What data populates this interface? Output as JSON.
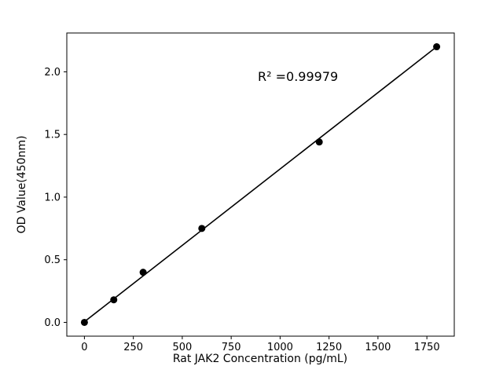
{
  "figure": {
    "background": "#ffffff"
  },
  "chart_data": {
    "type": "scatter",
    "title": "",
    "xlabel": "Rat JAK2 Concentration (pg/mL)",
    "ylabel": "OD Value(450nm)",
    "annotation": "R² =0.99979",
    "x": [
      0,
      150,
      300,
      600,
      1200,
      1800
    ],
    "y": [
      0.0,
      0.18,
      0.4,
      0.75,
      1.44,
      2.2
    ],
    "trendline": {
      "x": [
        0,
        1800
      ],
      "y": [
        0.005,
        2.2
      ]
    },
    "xticks": [
      0,
      250,
      500,
      750,
      1000,
      1250,
      1500,
      1750
    ],
    "yticks": [
      0,
      0.5,
      1.0,
      1.5,
      2.0
    ],
    "ytick_labels": [
      "0.0",
      "0.5",
      "1.0",
      "1.5",
      "2.0"
    ],
    "xlim": [
      -90,
      1890
    ],
    "ylim": [
      -0.11,
      2.31
    ],
    "grid": false,
    "legend_position": "none",
    "marker_color": "#000000",
    "line_color": "#000000",
    "spine_color": "#000000"
  }
}
